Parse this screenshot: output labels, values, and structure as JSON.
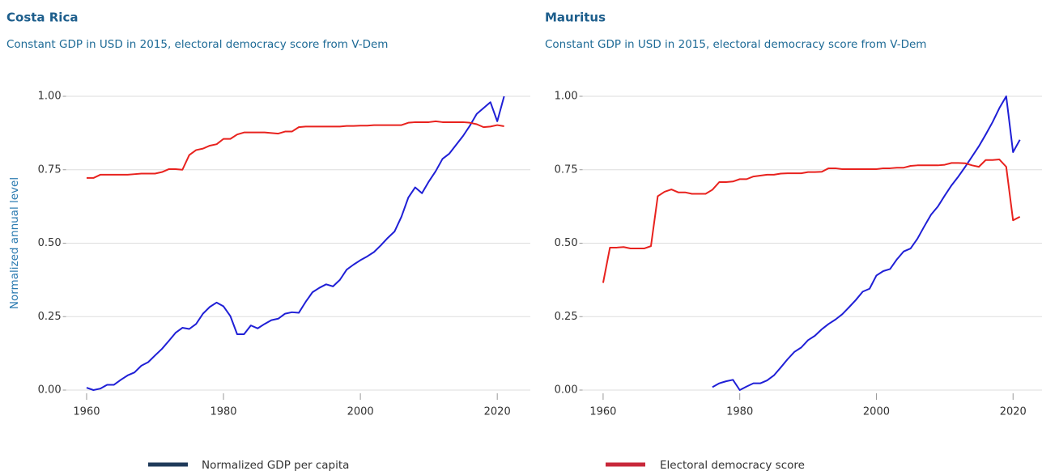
{
  "chart_data": [
    {
      "type": "line",
      "title": "Costa Rica",
      "subtitle": "Constant GDP in USD in 2015, electoral democracy score from V-Dem",
      "ylabel": "Normalized annual level",
      "x": [
        1960,
        1961,
        1962,
        1963,
        1964,
        1965,
        1966,
        1967,
        1968,
        1969,
        1970,
        1971,
        1972,
        1973,
        1974,
        1975,
        1976,
        1977,
        1978,
        1979,
        1980,
        1981,
        1982,
        1983,
        1984,
        1985,
        1986,
        1987,
        1988,
        1989,
        1990,
        1991,
        1992,
        1993,
        1994,
        1995,
        1996,
        1997,
        1998,
        1999,
        2000,
        2001,
        2002,
        2003,
        2004,
        2005,
        2006,
        2007,
        2008,
        2009,
        2010,
        2011,
        2012,
        2013,
        2014,
        2015,
        2016,
        2017,
        2018,
        2019,
        2020,
        2021
      ],
      "series": [
        {
          "name": "Normalized GDP per capita",
          "color": "#1f1fd6",
          "legend_color": "#1f3a5a",
          "values": [
            0.008,
            0.0,
            0.005,
            0.018,
            0.018,
            0.035,
            0.05,
            0.06,
            0.083,
            0.095,
            0.118,
            0.14,
            0.167,
            0.195,
            0.212,
            0.208,
            0.225,
            0.26,
            0.283,
            0.298,
            0.285,
            0.252,
            0.19,
            0.19,
            0.22,
            0.21,
            0.225,
            0.238,
            0.243,
            0.26,
            0.265,
            0.263,
            0.3,
            0.333,
            0.348,
            0.36,
            0.353,
            0.375,
            0.41,
            0.427,
            0.442,
            0.455,
            0.47,
            0.493,
            0.518,
            0.54,
            0.59,
            0.655,
            0.69,
            0.67,
            0.71,
            0.745,
            0.787,
            0.805,
            0.835,
            0.865,
            0.9,
            0.94,
            0.96,
            0.98,
            0.915,
            1.0
          ]
        },
        {
          "name": "Electoral democracy score",
          "color": "#e8221e",
          "legend_color": "#c8283a",
          "values": [
            0.722,
            0.722,
            0.733,
            0.733,
            0.733,
            0.733,
            0.733,
            0.735,
            0.737,
            0.737,
            0.737,
            0.742,
            0.752,
            0.752,
            0.75,
            0.8,
            0.817,
            0.822,
            0.832,
            0.837,
            0.855,
            0.855,
            0.87,
            0.877,
            0.877,
            0.877,
            0.877,
            0.875,
            0.873,
            0.88,
            0.88,
            0.895,
            0.897,
            0.897,
            0.897,
            0.897,
            0.897,
            0.897,
            0.899,
            0.899,
            0.9,
            0.9,
            0.902,
            0.902,
            0.902,
            0.902,
            0.902,
            0.91,
            0.912,
            0.912,
            0.912,
            0.915,
            0.912,
            0.912,
            0.912,
            0.912,
            0.91,
            0.905,
            0.895,
            0.897,
            0.902,
            0.898
          ]
        }
      ],
      "xlim": [
        1957,
        2024
      ],
      "xticks": [
        1960,
        1980,
        2000,
        2020
      ],
      "ylim": [
        0,
        1
      ],
      "yticks": [
        {
          "value": 0,
          "label": "0.00"
        },
        {
          "value": 0.25,
          "label": "0.25"
        },
        {
          "value": 0.5,
          "label": "0.50"
        },
        {
          "value": 0.75,
          "label": "0.75"
        },
        {
          "value": 1,
          "label": "1.00"
        }
      ],
      "grid": true
    },
    {
      "type": "line",
      "title": "Mauritus",
      "subtitle": "Constant GDP in USD in 2015, electoral democracy score from V-Dem",
      "x": [
        1960,
        1961,
        1962,
        1963,
        1964,
        1965,
        1966,
        1967,
        1968,
        1969,
        1970,
        1971,
        1972,
        1973,
        1974,
        1975,
        1976,
        1977,
        1978,
        1979,
        1980,
        1981,
        1982,
        1983,
        1984,
        1985,
        1986,
        1987,
        1988,
        1989,
        1990,
        1991,
        1992,
        1993,
        1994,
        1995,
        1996,
        1997,
        1998,
        1999,
        2000,
        2001,
        2002,
        2003,
        2004,
        2005,
        2006,
        2007,
        2008,
        2009,
        2010,
        2011,
        2012,
        2013,
        2014,
        2015,
        2016,
        2017,
        2018,
        2019,
        2020,
        2021
      ],
      "series": [
        {
          "name": "Normalized GDP per capita",
          "color": "#1f1fd6",
          "legend_color": "#1f3a5a",
          "values": [
            null,
            null,
            null,
            null,
            null,
            null,
            null,
            null,
            null,
            null,
            null,
            null,
            null,
            null,
            null,
            null,
            0.01,
            0.023,
            0.03,
            0.035,
            0.0,
            0.012,
            0.023,
            0.023,
            0.033,
            0.05,
            0.077,
            0.105,
            0.13,
            0.145,
            0.17,
            0.185,
            0.207,
            0.225,
            0.24,
            0.258,
            0.282,
            0.307,
            0.335,
            0.345,
            0.39,
            0.405,
            0.412,
            0.445,
            0.472,
            0.482,
            0.515,
            0.557,
            0.597,
            0.625,
            0.662,
            0.697,
            0.727,
            0.76,
            0.795,
            0.83,
            0.87,
            0.912,
            0.96,
            1.0,
            0.81,
            0.852
          ]
        },
        {
          "name": "Electoral democracy score",
          "color": "#e8221e",
          "legend_color": "#c8283a",
          "values": [
            0.365,
            0.485,
            0.485,
            0.487,
            0.482,
            0.482,
            0.482,
            0.49,
            0.66,
            0.675,
            0.683,
            0.673,
            0.673,
            0.668,
            0.668,
            0.668,
            0.682,
            0.708,
            0.708,
            0.71,
            0.718,
            0.718,
            0.727,
            0.73,
            0.733,
            0.733,
            0.737,
            0.738,
            0.738,
            0.738,
            0.742,
            0.742,
            0.743,
            0.755,
            0.755,
            0.752,
            0.752,
            0.752,
            0.752,
            0.752,
            0.752,
            0.755,
            0.755,
            0.757,
            0.757,
            0.763,
            0.765,
            0.765,
            0.765,
            0.765,
            0.767,
            0.773,
            0.773,
            0.772,
            0.765,
            0.76,
            0.783,
            0.783,
            0.785,
            0.76,
            0.578,
            0.59
          ]
        }
      ],
      "xlim": [
        1957,
        2024
      ],
      "xticks": [
        1960,
        1980,
        2000,
        2020
      ],
      "ylim": [
        0,
        1
      ],
      "yticks": [
        {
          "value": 0,
          "label": "0.00"
        },
        {
          "value": 0.25,
          "label": "0.25"
        },
        {
          "value": 0.5,
          "label": "0.50"
        },
        {
          "value": 0.75,
          "label": "0.75"
        },
        {
          "value": 1,
          "label": "1.00"
        }
      ],
      "grid": true
    }
  ]
}
